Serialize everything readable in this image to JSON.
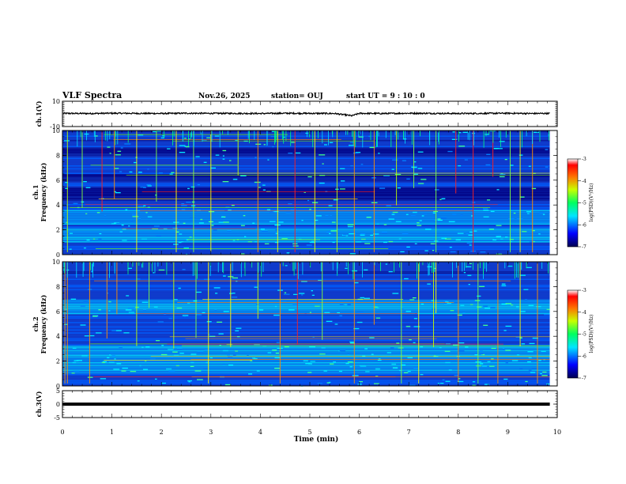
{
  "header": {
    "title": "VLF Spectra",
    "date": "Nov.26, 2025",
    "station": "station= OUJ",
    "start": "start  UT =  9 : 10 : 0"
  },
  "colors": {
    "black": "#000000",
    "spectrum_lo": "#000060",
    "spectrum_mid": "#00c8ff",
    "spectrum_hi": "#ff0000"
  },
  "chart_data": [
    {
      "type": "line",
      "name": "ch1-waveform",
      "ylabel": "ch.1(V)",
      "ylim": [
        -10,
        10
      ],
      "yticks": [
        "10",
        "-10"
      ],
      "x": [
        0,
        0.5,
        1,
        1.5,
        2,
        2.5,
        3,
        3.5,
        4,
        4.5,
        5,
        5.5,
        5.85,
        6,
        6.5,
        7,
        7.5,
        8,
        8.5,
        9,
        9.5,
        9.85
      ],
      "y": [
        0.4,
        0.3,
        0.5,
        0.4,
        0.3,
        0.5,
        0.4,
        0.4,
        0.3,
        0.5,
        0.4,
        0.3,
        -1.5,
        0.4,
        0.3,
        0.5,
        0.4,
        0.3,
        0.4,
        0.5,
        0.3,
        0.4
      ]
    },
    {
      "type": "heatmap",
      "name": "ch1-spectrogram",
      "ylabel": "ch.1\nFrequency (kHz)",
      "ylim": [
        0,
        10
      ],
      "yticks": [
        "0",
        "2",
        "4",
        "6",
        "8",
        "10"
      ],
      "colorbar": {
        "label": "log(PSD)(V²/Hz)",
        "range": [
          -7,
          -3
        ],
        "ticks": [
          "-3",
          "-4",
          "-5",
          "-6",
          "-7"
        ]
      },
      "dark_bands_khz": [
        [
          4.3,
          5.4
        ],
        [
          5.9,
          6.5
        ],
        [
          7.9,
          8.6
        ]
      ],
      "bright_bands_khz": [
        [
          0.9,
          2.2
        ],
        [
          2.4,
          3.6
        ]
      ],
      "vertical_bursts_min": [
        0.1,
        0.4,
        0.8,
        1.05,
        1.5,
        1.9,
        2.3,
        2.65,
        3.0,
        3.55,
        3.95,
        4.35,
        4.7,
        5.1,
        5.55,
        5.9,
        6.3,
        6.75,
        7.1,
        7.55,
        7.95,
        8.3,
        8.7,
        9.05,
        9.25,
        9.5
      ]
    },
    {
      "type": "heatmap",
      "name": "ch2-spectrogram",
      "ylabel": "ch.2\nFrequency (kHz)",
      "ylim": [
        0,
        10
      ],
      "yticks": [
        "0",
        "2",
        "4",
        "6",
        "8",
        "10"
      ],
      "colorbar": {
        "label": "log(PSD)(V²/Hz)",
        "range": [
          -7,
          -3
        ],
        "ticks": [
          "-3",
          "-4",
          "-5",
          "-6",
          "-7"
        ]
      },
      "bright_bands_khz": [
        [
          5.7,
          7.0
        ],
        [
          1.0,
          3.2
        ]
      ],
      "vertical_bursts_min": [
        0.05,
        0.1,
        0.55,
        0.9,
        1.1,
        1.5,
        1.75,
        2.25,
        2.7,
        2.95,
        3.4,
        3.95,
        4.4,
        4.75,
        5.25,
        5.9,
        6.3,
        6.85,
        7.2,
        7.5,
        7.55,
        8.0,
        8.4,
        8.8,
        9.25,
        9.6
      ]
    },
    {
      "type": "line",
      "name": "ch3-waveform",
      "ylabel": "ch.3(V)",
      "ylim": [
        -5,
        5
      ],
      "yticks": [
        "5",
        "0",
        "-5"
      ],
      "x": [
        0,
        9.85
      ],
      "y": [
        0,
        0
      ]
    }
  ],
  "xaxis": {
    "label": "Time  (min)",
    "xlim": [
      0,
      10
    ],
    "ticks": [
      "0",
      "1",
      "2",
      "3",
      "4",
      "5",
      "6",
      "7",
      "8",
      "9",
      "10"
    ]
  }
}
